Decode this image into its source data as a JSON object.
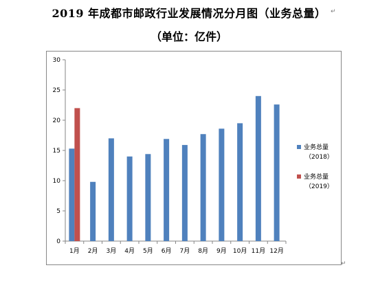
{
  "page": {
    "title": "2019 年成都市邮政行业发展情况分月图（业务总量）",
    "subtitle": "（单位：亿件）"
  },
  "chart_data": {
    "type": "bar",
    "title": "",
    "xlabel": "",
    "ylabel": "",
    "categories": [
      "1月",
      "2月",
      "3月",
      "4月",
      "5月",
      "6月",
      "7月",
      "8月",
      "9月",
      "10月",
      "11月",
      "12月"
    ],
    "series": [
      {
        "name": "业务总量",
        "name_line2": "（2018）",
        "color": "#4f81bd",
        "values": [
          15.3,
          9.8,
          17.0,
          14.0,
          14.4,
          16.9,
          15.9,
          17.7,
          18.6,
          19.5,
          24.0,
          22.6
        ]
      },
      {
        "name": "业务总量",
        "name_line2": "（2019）",
        "color": "#c0504d",
        "values": [
          22.0,
          null,
          null,
          null,
          null,
          null,
          null,
          null,
          null,
          null,
          null,
          null
        ]
      }
    ],
    "ylim": [
      0,
      30
    ],
    "yticks": [
      0,
      5,
      10,
      15,
      20,
      25,
      30
    ],
    "grid": false,
    "legend": "right"
  }
}
